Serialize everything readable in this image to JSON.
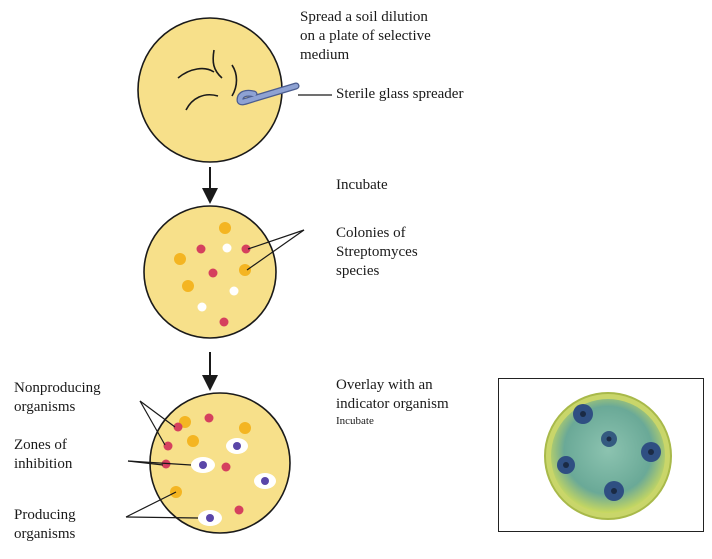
{
  "step1": {
    "lines": [
      "Spread a soil dilution",
      "on a plate of selective",
      "medium"
    ],
    "spreader_label": "Sterile glass spreader"
  },
  "step2": {
    "incubate": "Incubate",
    "colonies_lines": [
      "Colonies of",
      "Streptomyces",
      "species"
    ]
  },
  "step3": {
    "overlay_lines": [
      "Overlay with an",
      "indicator organism"
    ],
    "incubate_small": "Incubate",
    "nonproducing_lines": [
      "Nonproducing",
      "organisms"
    ],
    "zones_lines": [
      "Zones of",
      "inhibition"
    ],
    "producing_lines": [
      "Producing",
      "organisms"
    ]
  },
  "colors": {
    "plate_fill": "#f7e08a",
    "plate_stroke": "#1a1a1a",
    "colony_red": "#d5405e",
    "colony_orange": "#f4b522",
    "colony_white": "#ffffff",
    "zone_fill": "#ffffff",
    "zone_core": "#5a46a8",
    "spreader": "#7f94c6",
    "photo_agar": "#bfd35a",
    "photo_inner": "#79b7a4"
  },
  "icons": {
    "arrow": "down-arrow-icon",
    "spreader": "glass-spreader-icon"
  }
}
